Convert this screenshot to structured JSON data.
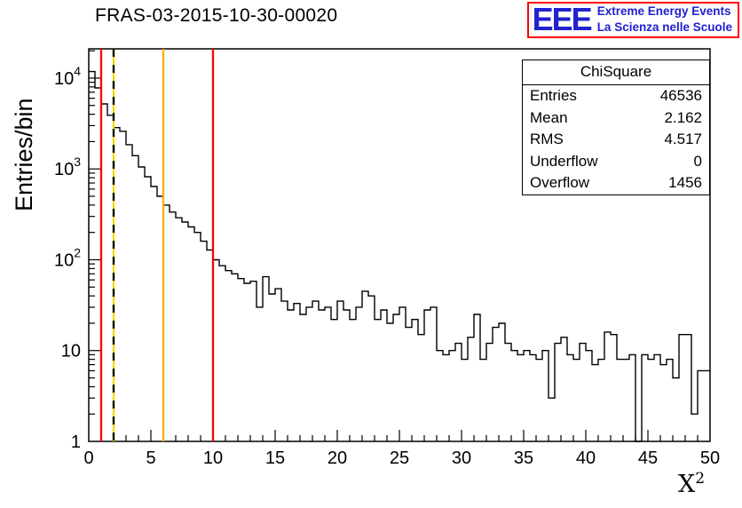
{
  "logo": {
    "eee": "EEE",
    "line1": "Extreme Energy Events",
    "line2": "La Scienza nelle Scuole",
    "text_color": "#2121cd",
    "border_color": "#ff0000"
  },
  "chart_data": {
    "type": "histogram",
    "title": "FRAS-03-2015-10-30-00020",
    "xlabel_base": "X",
    "xlabel_sup": "2",
    "ylabel": "Entries/bin",
    "x_range": [
      0,
      50
    ],
    "y_range_log": [
      1,
      21000
    ],
    "y_scale": "log",
    "x_major_ticks": [
      0,
      5,
      10,
      15,
      20,
      25,
      30,
      35,
      40,
      45,
      50
    ],
    "x_minor_step": 1,
    "y_decades": [
      1,
      10,
      100,
      1000,
      10000
    ],
    "bin_start": 0,
    "bin_width": 0.5,
    "line_color": "#000000",
    "counts": [
      11800,
      7800,
      5200,
      3900,
      2850,
      2600,
      1850,
      1400,
      1050,
      820,
      640,
      500,
      400,
      335,
      290,
      260,
      230,
      200,
      160,
      128,
      100,
      86,
      76,
      70,
      62,
      55,
      58,
      30,
      65,
      42,
      48,
      35,
      28,
      33,
      25,
      30,
      35,
      28,
      30,
      22,
      35,
      28,
      22,
      30,
      45,
      40,
      22,
      28,
      20,
      25,
      30,
      18,
      22,
      15,
      28,
      30,
      10,
      9,
      10,
      12,
      8,
      14,
      25,
      8,
      12,
      18,
      20,
      12,
      10,
      9,
      10,
      9,
      8,
      10,
      3,
      12,
      14,
      9,
      8,
      12,
      10,
      7,
      8,
      16,
      15,
      8,
      8,
      9,
      1,
      9,
      8,
      9,
      7,
      8,
      5,
      15,
      15,
      2,
      6,
      6
    ],
    "vlines": [
      {
        "x": 1,
        "color": "#ff0000",
        "style": "solid"
      },
      {
        "x": 2,
        "color": "#ffd400",
        "style": "dashed",
        "dash_color": "#000000"
      },
      {
        "x": 6,
        "color": "#ffaa00",
        "style": "solid"
      },
      {
        "x": 10,
        "color": "#ff0000",
        "style": "solid"
      }
    ],
    "stats": {
      "header": "ChiSquare",
      "rows": [
        {
          "label": "Entries",
          "value": "46536"
        },
        {
          "label": "Mean",
          "value": "2.162"
        },
        {
          "label": "RMS",
          "value": "4.517"
        },
        {
          "label": "Underflow",
          "value": "0"
        },
        {
          "label": "Overflow",
          "value": "1456"
        }
      ]
    }
  }
}
